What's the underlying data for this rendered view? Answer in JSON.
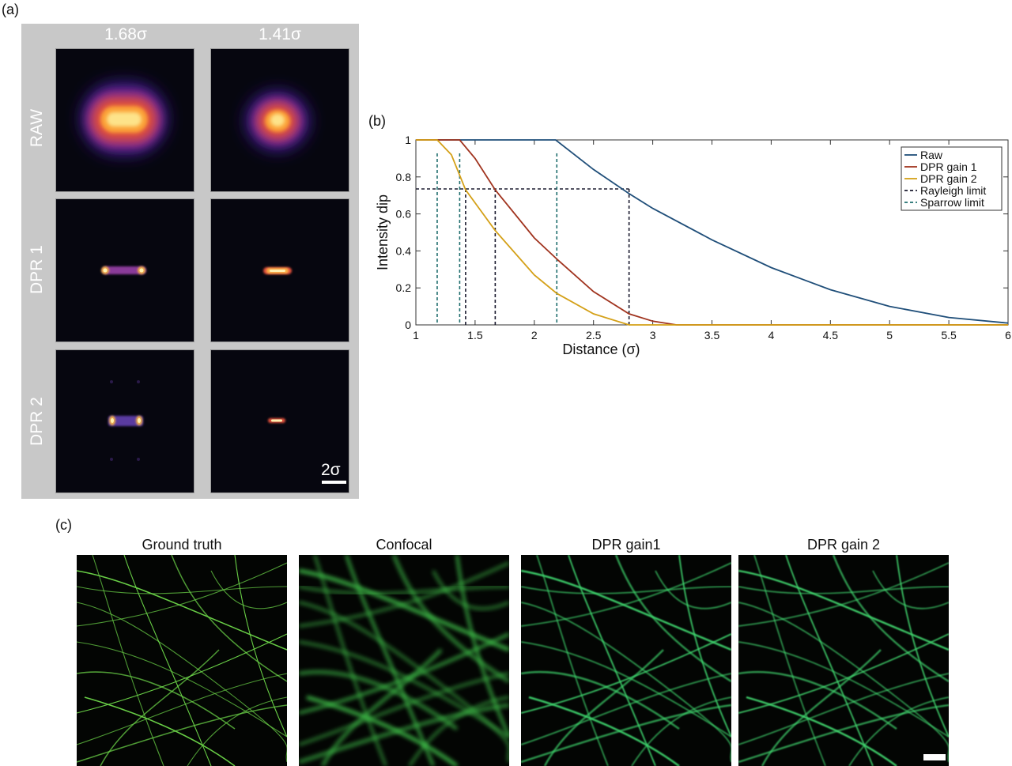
{
  "panel_a": {
    "label": "(a)",
    "columns": [
      "1.68σ",
      "1.41σ"
    ],
    "rows": [
      "RAW",
      "DPR 1",
      "DPR 2"
    ],
    "scale_bar": "2σ"
  },
  "panel_b": {
    "label": "(b)"
  },
  "panel_c": {
    "label": "(c)",
    "titles": [
      "Ground truth",
      "Confocal",
      "DPR gain1",
      "DPR gain 2"
    ]
  },
  "chart_data": {
    "type": "line",
    "xlabel": "Distance (σ)",
    "ylabel": "Intensity dip",
    "xlim": [
      1,
      6
    ],
    "ylim": [
      0,
      1
    ],
    "xticks": [
      "1",
      "1.5",
      "2",
      "2.5",
      "3",
      "3.5",
      "4",
      "4.5",
      "5",
      "5.5",
      "6"
    ],
    "yticks": [
      "0",
      "0.2",
      "0.4",
      "0.6",
      "0.8",
      "1"
    ],
    "legend_position": "top-right",
    "series": [
      {
        "name": "Raw",
        "color": "#1f4e79",
        "x": [
          1,
          1.5,
          2,
          2.18,
          2.5,
          2.8,
          3,
          3.5,
          4,
          4.5,
          5,
          5.5,
          6
        ],
        "y": [
          1,
          1,
          1,
          1,
          0.84,
          0.71,
          0.63,
          0.46,
          0.31,
          0.19,
          0.1,
          0.04,
          0.01
        ]
      },
      {
        "name": "DPR gain 1",
        "color": "#a0331e",
        "x": [
          1,
          1.3,
          1.37,
          1.5,
          1.67,
          2,
          2.2,
          2.5,
          2.8,
          3,
          3.2,
          3.5,
          4,
          5,
          6
        ],
        "y": [
          1,
          1,
          1,
          0.9,
          0.73,
          0.47,
          0.35,
          0.18,
          0.06,
          0.02,
          0,
          0,
          0,
          0,
          0
        ]
      },
      {
        "name": "DPR gain 2",
        "color": "#d4a017",
        "x": [
          1,
          1.18,
          1.3,
          1.42,
          1.5,
          1.67,
          2,
          2.19,
          2.5,
          2.8,
          3,
          3.5,
          4,
          5,
          6
        ],
        "y": [
          1,
          1,
          0.92,
          0.73,
          0.66,
          0.51,
          0.27,
          0.17,
          0.06,
          0,
          0,
          0,
          0,
          0,
          0
        ]
      }
    ],
    "rayleigh_level": 0.735,
    "rayleigh_x": [
      1.42,
      1.67,
      2.8
    ],
    "sparrow_x": [
      1.18,
      1.37,
      2.19
    ],
    "limit_lines": [
      {
        "name": "Rayleigh limit",
        "color": "#1a1a2e"
      },
      {
        "name": "Sparrow limit",
        "color": "#1f6e6e"
      }
    ]
  }
}
